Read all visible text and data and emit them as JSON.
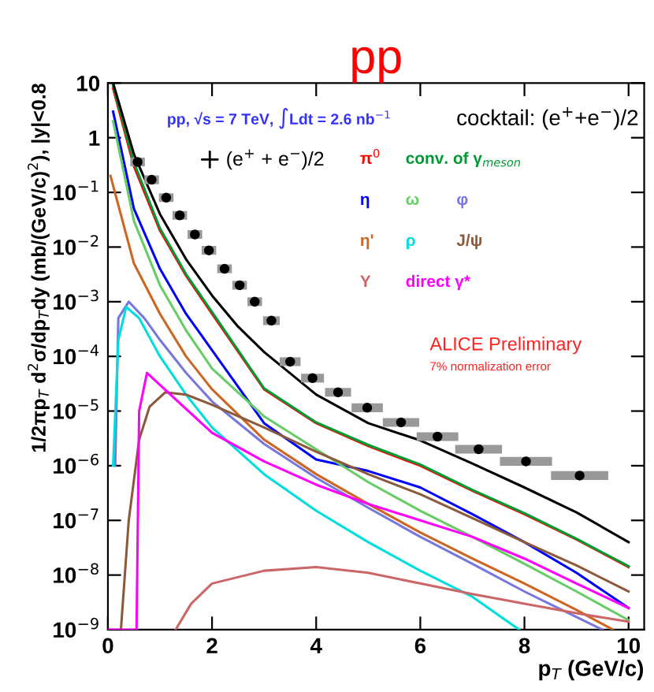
{
  "chart_data": {
    "type": "line",
    "title": "pp",
    "xlabel": "p$_{T}$ (GeV/c)",
    "ylabel": "1/2πp$_{T}$ d$^{2}$σ/dp$_{T}$dy (mb/(GeV/c)$^{2}$), |y|<0.8",
    "legend_title": "cocktail: (e$^{+}$+e$^{−}$)/2",
    "log": "y",
    "xlim": [
      0,
      10.3
    ],
    "ylim": [
      1e-09,
      10
    ],
    "xticks": [
      0,
      2,
      4,
      6,
      8,
      10
    ],
    "yticks": [
      {
        "value": 1e-09,
        "label": "10$^{−9}$"
      },
      {
        "value": 1e-08,
        "label": "10$^{−8}$"
      },
      {
        "value": 1e-07,
        "label": "10$^{−7}$"
      },
      {
        "value": 1e-06,
        "label": "10$^{−6}$"
      },
      {
        "value": 1e-05,
        "label": "10$^{−5}$"
      },
      {
        "value": 0.0001,
        "label": "10$^{−4}$"
      },
      {
        "value": 0.001,
        "label": "10$^{−3}$"
      },
      {
        "value": 0.01,
        "label": "10$^{−2}$"
      },
      {
        "value": 0.1,
        "label": "10$^{−1}$"
      },
      {
        "value": 1,
        "label": "1"
      },
      {
        "value": 10,
        "label": "10"
      }
    ],
    "grid": false,
    "legend": "top",
    "annotations": [
      "pp, √s = 7 TeV, ∫Ldt = 2.6 nb$^{−1}$",
      "ALICE Preliminary",
      "7% normalization error"
    ],
    "series": [
      {
        "name": "(e$^{+}$ + e$^{−}$)/2",
        "type": "scatter",
        "marker": "circle",
        "color": "#000000",
        "x": [
          0.57,
          0.84,
          1.12,
          1.38,
          1.67,
          1.94,
          2.24,
          2.53,
          2.82,
          3.14,
          3.5,
          3.93,
          4.42,
          4.98,
          5.63,
          6.33,
          7.12,
          8.03,
          9.06
        ],
        "values": [
          0.36,
          0.17,
          0.08,
          0.038,
          0.017,
          0.0087,
          0.004,
          0.002,
          0.001,
          0.00045,
          8e-05,
          4e-05,
          2.2e-05,
          1.15e-05,
          6.2e-06,
          3.4e-06,
          2e-06,
          1.2e-06,
          6.6e-07
        ],
        "xerrors": [
          0.14,
          0.14,
          0.14,
          0.14,
          0.14,
          0.14,
          0.14,
          0.14,
          0.14,
          0.16,
          0.2,
          0.22,
          0.25,
          0.3,
          0.35,
          0.4,
          0.45,
          0.5,
          0.55
        ]
      },
      {
        "name": "π$^{0}$",
        "color": "#ff0000",
        "x": [
          0.1,
          0.5,
          1,
          1.5,
          2,
          3,
          4,
          5,
          6,
          7,
          8,
          9,
          10
        ],
        "values": [
          8,
          0.3,
          0.02,
          0.003,
          0.0006,
          2.5e-05,
          6e-06,
          2.3e-06,
          1e-06,
          3.5e-07,
          1.3e-07,
          4.5e-08,
          1.4e-08
        ]
      },
      {
        "name": "conv. of γ$_{meson}$",
        "color": "#009933",
        "x": [
          0.1,
          0.5,
          1,
          1.5,
          2,
          3,
          4,
          5,
          6,
          7,
          8,
          9,
          10
        ],
        "values": [
          9,
          0.35,
          0.022,
          0.0032,
          0.00065,
          2.6e-05,
          6.2e-06,
          2.4e-06,
          1.05e-06,
          3.6e-07,
          1.35e-07,
          4.6e-08,
          1.45e-08
        ]
      },
      {
        "name": "η",
        "color": "#0000ff",
        "x": [
          0.1,
          0.5,
          1,
          1.5,
          2,
          3,
          4,
          5,
          6,
          7,
          8,
          9,
          10
        ],
        "values": [
          3,
          0.05,
          0.004,
          0.0006,
          0.00013,
          6e-06,
          1.3e-06,
          8e-07,
          4e-07,
          1.3e-07,
          4e-08,
          1.1e-08,
          2.5e-09
        ]
      },
      {
        "name": "ω",
        "color": "#66cc66",
        "x": [
          0.1,
          0.5,
          1,
          1.5,
          2,
          3,
          4,
          5,
          6,
          7,
          8,
          9,
          10
        ],
        "values": [
          2,
          0.03,
          0.002,
          0.0003,
          6e-05,
          8e-06,
          2e-06,
          5e-07,
          1.5e-07,
          5e-08,
          1.6e-08,
          5e-09,
          1.5e-09
        ]
      },
      {
        "name": "φ",
        "color": "#7777dd",
        "x": [
          0.14,
          0.2,
          0.4,
          0.7,
          1,
          1.5,
          2,
          3,
          4,
          5,
          6,
          7,
          8,
          9,
          9.5
        ],
        "values": [
          1e-06,
          0.0005,
          0.001,
          0.0005,
          0.0002,
          5e-05,
          1.5e-05,
          2.5e-06,
          6e-07,
          1.7e-07,
          5e-08,
          1.6e-08,
          5e-09,
          1.7e-09,
          1e-09
        ]
      },
      {
        "name": "η'",
        "color": "#cc6622",
        "x": [
          0.05,
          0.5,
          1,
          1.5,
          2,
          3,
          4,
          5,
          6,
          7,
          8,
          9,
          9.7
        ],
        "values": [
          0.2,
          0.005,
          0.0006,
          0.0001,
          2.5e-05,
          3e-06,
          7e-07,
          2e-07,
          6e-08,
          2e-08,
          7e-09,
          2.3e-09,
          1e-09
        ]
      },
      {
        "name": "ρ",
        "color": "#00dddd",
        "x": [
          0.1,
          0.2,
          0.35,
          0.6,
          1,
          1.5,
          2,
          3,
          4,
          5,
          6,
          7,
          7.9
        ],
        "values": [
          1e-06,
          0.0002,
          0.0008,
          0.0005,
          0.0001,
          2e-05,
          5e-06,
          7e-07,
          1.5e-07,
          4e-08,
          1.2e-08,
          4e-09,
          1e-09
        ]
      },
      {
        "name": "J/ψ",
        "color": "#8b5a3c",
        "x": [
          0.25,
          0.4,
          0.6,
          0.8,
          1.1,
          1.5,
          2,
          3,
          4,
          5,
          6,
          7,
          8,
          9,
          10
        ],
        "values": [
          1e-09,
          1e-07,
          3e-06,
          1.2e-05,
          2.2e-05,
          2e-05,
          1.3e-05,
          5e-06,
          1.8e-06,
          7e-07,
          3e-07,
          1.1e-07,
          4e-08,
          1.5e-08,
          5e-09
        ]
      },
      {
        "name": "Υ",
        "color": "#cc6666",
        "x": [
          1.3,
          1.6,
          2,
          3,
          4,
          5,
          6,
          7,
          8,
          9,
          10
        ],
        "values": [
          1e-09,
          3e-09,
          7e-09,
          1.2e-08,
          1.4e-08,
          1.1e-08,
          7e-09,
          4.5e-09,
          3e-09,
          2e-09,
          1.4e-09
        ]
      },
      {
        "name": "direct γ*",
        "color": "#ff00ff",
        "x": [
          0,
          0.55,
          0.6,
          0.75,
          1,
          2,
          3,
          4,
          5,
          6,
          7,
          8,
          9,
          10
        ],
        "values": [
          1e-09,
          1e-09,
          1e-05,
          5e-05,
          3e-05,
          4e-06,
          1.2e-06,
          4.5e-07,
          2e-07,
          1e-07,
          5e-08,
          2e-08,
          7e-09,
          2.5e-09
        ]
      },
      {
        "color": "#000000",
        "x": [
          0.1,
          0.5,
          1,
          1.5,
          2,
          2.5,
          3,
          4,
          5,
          6,
          7,
          8,
          9,
          10
        ],
        "values": [
          10,
          0.5,
          0.04,
          0.006,
          0.0013,
          0.00035,
          0.00012,
          2e-05,
          6e-06,
          2.9e-06,
          1.1e-06,
          4e-07,
          1.4e-07,
          4e-08
        ]
      }
    ]
  }
}
